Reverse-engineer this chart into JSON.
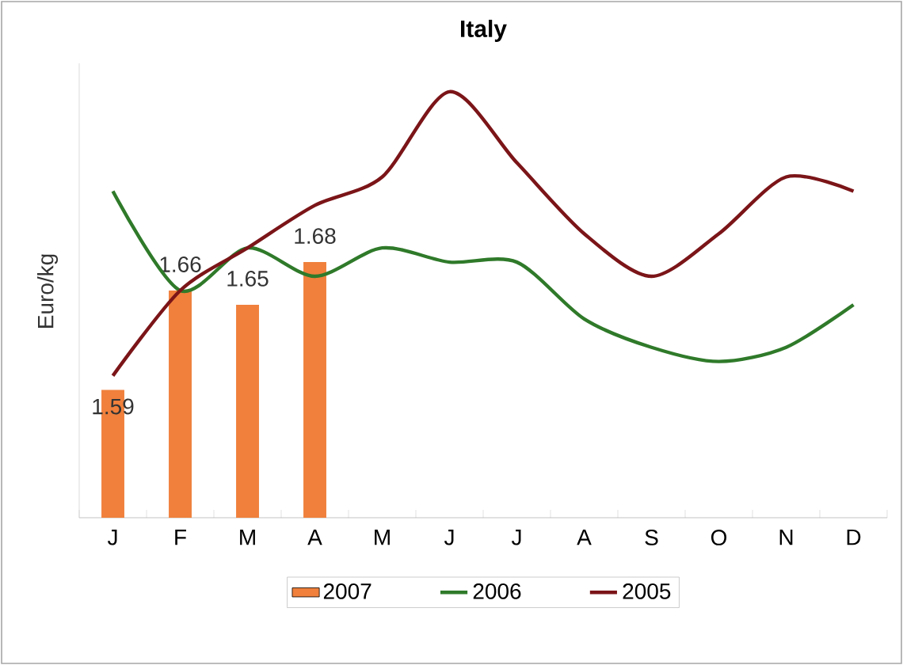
{
  "chart_data": {
    "type": "line",
    "title": "Italy",
    "ylabel": "Euro/kg",
    "categories": [
      "J",
      "F",
      "M",
      "A",
      "M",
      "J",
      "J",
      "A",
      "S",
      "O",
      "N",
      "D"
    ],
    "ylim": [
      1.5,
      1.82
    ],
    "tick_labels": "x",
    "legend": "bottom",
    "grid": false,
    "series": [
      {
        "name": "2007",
        "type": "bar",
        "color": "#f0803c",
        "values": [
          1.59,
          1.66,
          1.65,
          1.68,
          null,
          null,
          null,
          null,
          null,
          null,
          null,
          null
        ],
        "value_labels": [
          "1.59",
          "1.66",
          "1.65",
          "1.68",
          null,
          null,
          null,
          null,
          null,
          null,
          null,
          null
        ]
      },
      {
        "name": "2006",
        "color": "#2f7a2a",
        "values": [
          1.73,
          1.66,
          1.69,
          1.67,
          1.69,
          1.68,
          1.68,
          1.64,
          1.62,
          1.61,
          1.62,
          1.65
        ]
      },
      {
        "name": "2005",
        "color": "#7b1518",
        "values": [
          1.6,
          1.66,
          1.69,
          1.72,
          1.74,
          1.8,
          1.75,
          1.7,
          1.67,
          1.7,
          1.74,
          1.73
        ]
      }
    ]
  }
}
